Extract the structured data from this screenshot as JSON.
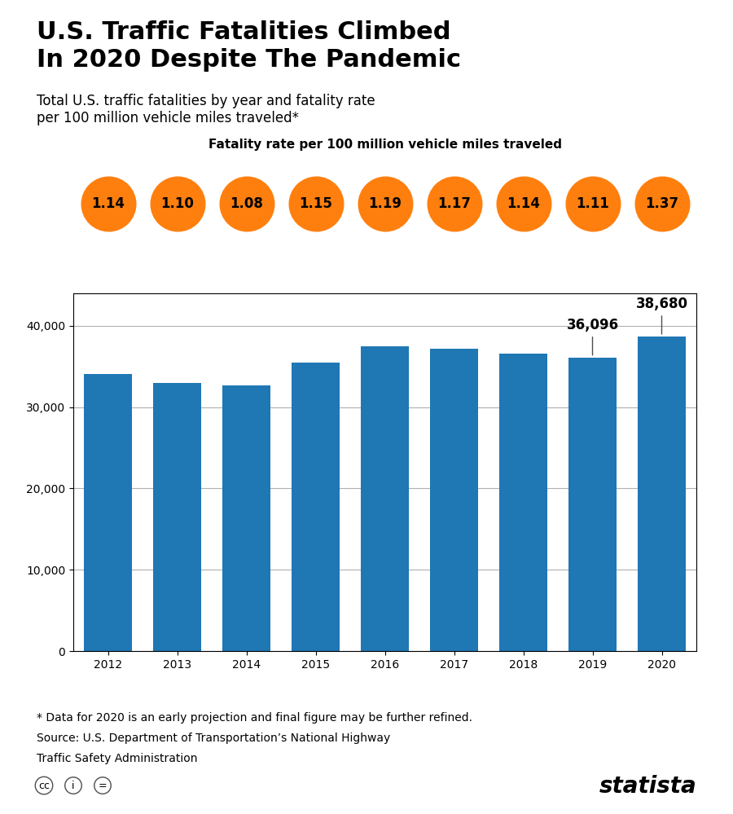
{
  "chart_data": {
    "type": "bar",
    "title": "U.S. Traffic Fatalities Climbed\nIn 2020 Despite The Pandemic",
    "subtitle": "Total U.S. traffic fatalities by year and fatality rate\nper 100 million vehicle miles traveled*",
    "categories": [
      "2012",
      "2013",
      "2014",
      "2015",
      "2016",
      "2017",
      "2018",
      "2019",
      "2020"
    ],
    "values": [
      34080,
      32999,
      32675,
      35485,
      37461,
      37133,
      36560,
      36096,
      38680
    ],
    "ylim": [
      0,
      44000
    ],
    "yticks": [
      0,
      {
        "value": 10000,
        "label": "10,000"
      },
      {
        "value": 20000,
        "label": "20,000"
      },
      {
        "value": 30000,
        "label": "30,000"
      },
      {
        "value": 40000,
        "label": "40,000"
      }
    ],
    "grid": true,
    "rates": {
      "label": "Fatality rate per 100 million vehicle miles traveled",
      "values": [
        1.14,
        1.1,
        1.08,
        1.15,
        1.19,
        1.17,
        1.14,
        1.11,
        1.37
      ],
      "value_labels": [
        "1.14",
        "1.10",
        "1.08",
        "1.15",
        "1.19",
        "1.17",
        "1.14",
        "1.11",
        "1.37"
      ]
    },
    "annotations": [
      {
        "category": "2019",
        "text": "36,096"
      },
      {
        "category": "2020",
        "text": "38,680"
      }
    ],
    "footnotes": [
      "* Data for 2020 is an early projection and final figure may be further refined.",
      "Source: U.S. Department of Transportation’s National Highway",
      "Traffic Safety Administration"
    ],
    "license_icons": [
      "cc",
      "i",
      "="
    ],
    "brand": "statista"
  }
}
